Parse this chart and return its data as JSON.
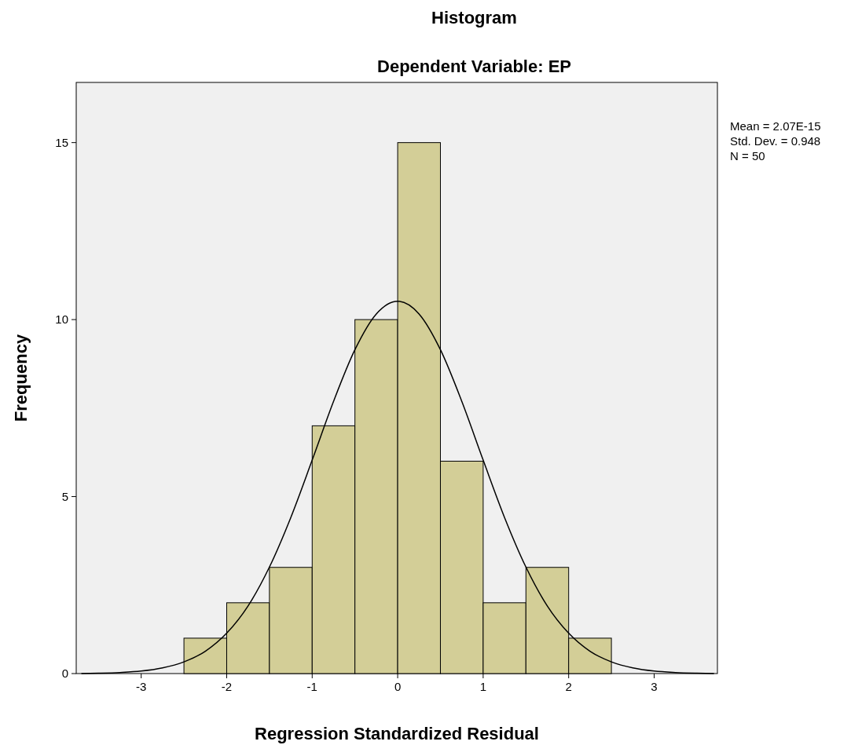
{
  "chart_data": {
    "type": "histogram",
    "title": "Histogram",
    "subtitle": "Dependent Variable: EP",
    "xlabel": "Regression Standardized Residual",
    "ylabel": "Frequency",
    "xlim": [
      -3.76,
      3.74
    ],
    "ylim": [
      0,
      16.7
    ],
    "xticks": [
      -3,
      -2,
      -1,
      0,
      1,
      2,
      3
    ],
    "yticks": [
      0,
      5,
      10,
      15
    ],
    "grid": false,
    "annotations": [
      "Mean = 2.07E-15",
      "Std. Dev. = 0.948",
      "N = 50"
    ],
    "series": [
      {
        "color": "#d3ce97",
        "bins": [
          -2.5,
          -2,
          -1.5,
          -1,
          -0.5,
          0,
          0.5,
          1,
          1.5,
          2,
          2.5
        ],
        "values": [
          1,
          2,
          3,
          7,
          10,
          15,
          6,
          2,
          3,
          1
        ]
      },
      {
        "type": "line",
        "color": "#000000",
        "x": [
          -3.7,
          -3.5,
          -3.25,
          -3,
          -2.75,
          -2.5,
          -2.25,
          -2,
          -1.75,
          -1.5,
          -1.25,
          -1,
          -0.75,
          -0.5,
          -0.25,
          0,
          0.25,
          0.5,
          0.75,
          1,
          1.25,
          1.5,
          1.75,
          2,
          2.25,
          2.5,
          2.75,
          3,
          3.25,
          3.5,
          3.7
        ],
        "values": [
          0,
          0.01,
          0.03,
          0.07,
          0.16,
          0.33,
          0.63,
          1.14,
          1.91,
          3.01,
          4.41,
          6.03,
          7.69,
          9.15,
          10.16,
          10.52,
          10.16,
          9.15,
          7.69,
          6.03,
          4.41,
          3.01,
          1.91,
          1.14,
          0.63,
          0.33,
          0.16,
          0.07,
          0.03,
          0.01,
          0
        ]
      }
    ]
  }
}
